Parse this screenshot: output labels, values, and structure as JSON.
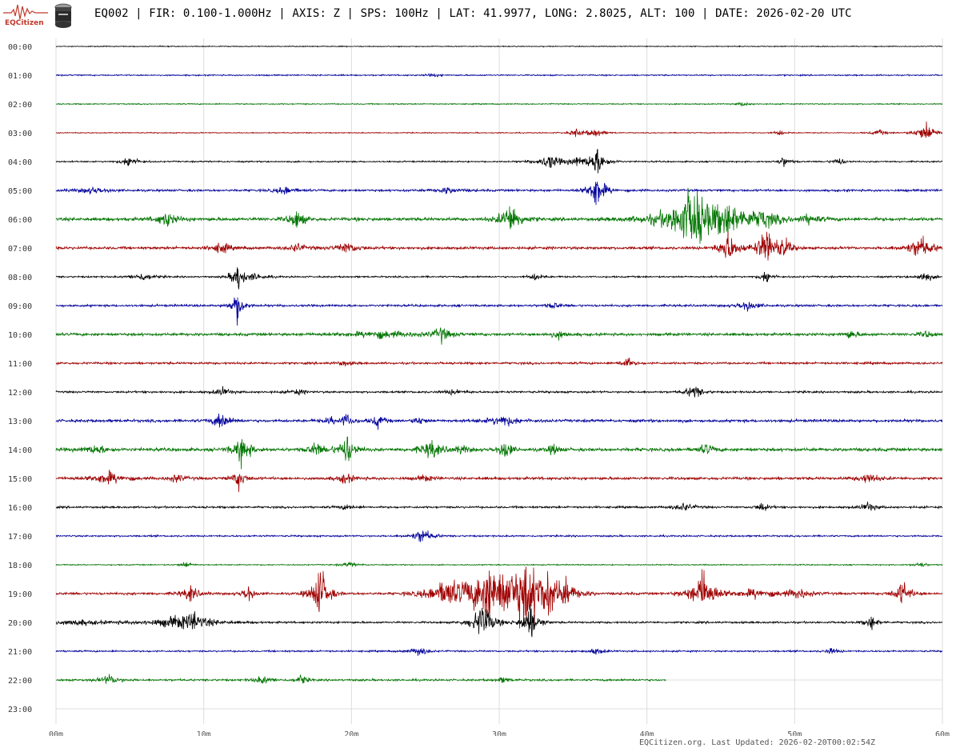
{
  "header": {
    "title": "EQ002 | FIR: 0.100-1.000Hz | AXIS: Z | SPS: 100Hz | LAT: 41.9977, LONG: 2.8025, ALT: 100 | DATE: 2026-02-20 UTC",
    "logo_text": "EQCitizen",
    "logo_icon": "seismograph-icon",
    "sensor_icon": "sensor-canister-icon"
  },
  "footer": {
    "text": "EQCitizen.org. Last Updated: 2026-02-20T00:02:54Z"
  },
  "colors": {
    "trace_cycle": [
      "#000000",
      "#00009c",
      "#007500",
      "#a00000"
    ],
    "grid": "#dcdcdc",
    "logo": "#c0392b"
  },
  "chart_data": {
    "type": "line",
    "title": "",
    "xlabel": "",
    "ylabel": "",
    "x_unit": "minutes",
    "xlim": [
      0,
      60
    ],
    "x_ticks": [
      "00m",
      "10m",
      "20m",
      "30m",
      "40m",
      "50m",
      "60m"
    ],
    "grid": true,
    "rows": [
      {
        "label": "00:00",
        "end_minute": 60,
        "noise": 0.8,
        "events": []
      },
      {
        "label": "01:00",
        "end_minute": 60,
        "noise": 1.2,
        "events": [
          [
            25.5,
            4,
            0.3
          ]
        ]
      },
      {
        "label": "02:00",
        "end_minute": 60,
        "noise": 1.0,
        "events": [
          [
            46.5,
            4,
            0.3
          ]
        ]
      },
      {
        "label": "03:00",
        "end_minute": 60,
        "noise": 0.9,
        "events": [
          [
            35.2,
            7,
            0.4
          ],
          [
            36.5,
            9,
            0.4
          ],
          [
            49,
            5,
            0.3
          ],
          [
            55.7,
            6,
            0.4
          ],
          [
            58.9,
            19,
            0.5
          ]
        ]
      },
      {
        "label": "04:00",
        "end_minute": 60,
        "noise": 1.3,
        "events": [
          [
            5,
            12,
            0.4
          ],
          [
            33.4,
            14,
            0.6
          ],
          [
            35.2,
            7,
            0.4
          ],
          [
            36.6,
            26,
            0.5
          ],
          [
            49.3,
            10,
            0.3
          ],
          [
            53,
            8,
            0.3
          ]
        ]
      },
      {
        "label": "05:00",
        "end_minute": 60,
        "noise": 2.0,
        "events": [
          [
            2.5,
            6,
            0.8
          ],
          [
            15.5,
            8,
            0.5
          ],
          [
            26.5,
            6,
            0.6
          ],
          [
            36.6,
            37,
            0.4
          ]
        ]
      },
      {
        "label": "06:00",
        "end_minute": 60,
        "noise": 3.0,
        "events": [
          [
            7.5,
            14,
            0.5
          ],
          [
            16.3,
            18,
            0.4
          ],
          [
            30.8,
            32,
            0.5
          ],
          [
            42.6,
            28,
            1.5
          ],
          [
            43.3,
            38,
            0.8
          ],
          [
            45.5,
            24,
            1.0
          ],
          [
            47.8,
            14,
            1.0
          ],
          [
            51,
            8,
            0.6
          ]
        ]
      },
      {
        "label": "07:00",
        "end_minute": 60,
        "noise": 2.5,
        "events": [
          [
            11.2,
            12,
            0.4
          ],
          [
            16.3,
            9,
            0.4
          ],
          [
            19.7,
            10,
            0.6
          ],
          [
            45.5,
            34,
            0.4
          ],
          [
            48.1,
            38,
            0.5
          ],
          [
            49.3,
            16,
            0.4
          ],
          [
            58.5,
            22,
            0.6
          ]
        ]
      },
      {
        "label": "08:00",
        "end_minute": 60,
        "noise": 1.5,
        "events": [
          [
            5.9,
            8,
            0.5
          ],
          [
            12.3,
            30,
            0.3
          ],
          [
            13.5,
            6,
            0.6
          ],
          [
            32.5,
            8,
            0.3
          ],
          [
            48.1,
            14,
            0.3
          ],
          [
            58.8,
            10,
            0.4
          ]
        ]
      },
      {
        "label": "09:00",
        "end_minute": 60,
        "noise": 2.0,
        "events": [
          [
            12.3,
            34,
            0.3
          ],
          [
            33.7,
            6,
            0.4
          ],
          [
            46.8,
            10,
            0.5
          ]
        ]
      },
      {
        "label": "10:00",
        "end_minute": 60,
        "noise": 2.5,
        "events": [
          [
            22,
            6,
            2.0
          ],
          [
            26.1,
            14,
            0.4
          ],
          [
            34,
            8,
            0.4
          ],
          [
            53.8,
            8,
            0.4
          ],
          [
            58.9,
            6,
            0.4
          ]
        ]
      },
      {
        "label": "11:00",
        "end_minute": 60,
        "noise": 2.0,
        "events": [
          [
            38.6,
            12,
            0.3
          ],
          [
            19.5,
            5,
            0.4
          ]
        ]
      },
      {
        "label": "12:00",
        "end_minute": 60,
        "noise": 1.8,
        "events": [
          [
            11.3,
            8,
            0.4
          ],
          [
            16.3,
            5,
            0.5
          ],
          [
            27,
            5,
            0.5
          ],
          [
            43.2,
            14,
            0.4
          ]
        ]
      },
      {
        "label": "13:00",
        "end_minute": 60,
        "noise": 2.5,
        "events": [
          [
            11.2,
            18,
            0.4
          ],
          [
            18.6,
            6,
            0.4
          ],
          [
            19.7,
            14,
            0.3
          ],
          [
            21.8,
            14,
            0.3
          ],
          [
            30.3,
            10,
            0.8
          ],
          [
            24.6,
            8,
            0.3
          ]
        ]
      },
      {
        "label": "14:00",
        "end_minute": 60,
        "noise": 3.0,
        "events": [
          [
            2.7,
            8,
            0.6
          ],
          [
            12.6,
            30,
            0.4
          ],
          [
            17.6,
            14,
            0.4
          ],
          [
            19.7,
            30,
            0.4
          ],
          [
            25.4,
            18,
            0.5
          ],
          [
            27.5,
            8,
            0.4
          ],
          [
            30.4,
            22,
            0.3
          ],
          [
            33.7,
            10,
            0.3
          ],
          [
            44,
            10,
            0.4
          ]
        ]
      },
      {
        "label": "15:00",
        "end_minute": 60,
        "noise": 2.5,
        "events": [
          [
            3.5,
            12,
            0.8
          ],
          [
            8.2,
            8,
            0.4
          ],
          [
            12.4,
            20,
            0.3
          ],
          [
            19.6,
            10,
            0.4
          ],
          [
            25,
            6,
            0.4
          ],
          [
            55,
            10,
            0.5
          ]
        ]
      },
      {
        "label": "16:00",
        "end_minute": 60,
        "noise": 1.8,
        "events": [
          [
            19.7,
            5,
            0.4
          ],
          [
            42.5,
            8,
            0.5
          ],
          [
            47.8,
            10,
            0.3
          ],
          [
            55,
            9,
            0.4
          ]
        ]
      },
      {
        "label": "17:00",
        "end_minute": 60,
        "noise": 1.5,
        "events": [
          [
            24.8,
            14,
            0.5
          ]
        ]
      },
      {
        "label": "18:00",
        "end_minute": 60,
        "noise": 1.0,
        "events": [
          [
            8.8,
            6,
            0.3
          ],
          [
            19.9,
            5,
            0.4
          ],
          [
            58.5,
            6,
            0.3
          ]
        ]
      },
      {
        "label": "19:00",
        "end_minute": 60,
        "noise": 2.2,
        "events": [
          [
            9.1,
            16,
            0.4
          ],
          [
            13,
            18,
            0.3
          ],
          [
            17.9,
            56,
            0.4
          ],
          [
            26.4,
            22,
            0.8
          ],
          [
            29.4,
            46,
            1.5
          ],
          [
            31.8,
            48,
            1.2
          ],
          [
            33.3,
            24,
            0.8
          ],
          [
            34.5,
            12,
            0.5
          ],
          [
            43.8,
            42,
            0.6
          ],
          [
            47.3,
            8,
            1.2
          ],
          [
            50.3,
            10,
            0.6
          ],
          [
            57.3,
            24,
            0.4
          ]
        ]
      },
      {
        "label": "20:00",
        "end_minute": 60,
        "noise": 1.8,
        "events": [
          [
            1.5,
            5,
            1.2
          ],
          [
            8.2,
            10,
            1.6
          ],
          [
            9.4,
            14,
            0.6
          ],
          [
            28.9,
            40,
            0.5
          ],
          [
            32.1,
            36,
            0.4
          ],
          [
            55.2,
            14,
            0.3
          ]
        ]
      },
      {
        "label": "21:00",
        "end_minute": 60,
        "noise": 1.5,
        "events": [
          [
            24.6,
            8,
            0.5
          ],
          [
            36.6,
            6,
            0.4
          ],
          [
            52.5,
            6,
            0.3
          ]
        ]
      },
      {
        "label": "22:00",
        "end_minute": 41.3,
        "noise": 1.8,
        "events": [
          [
            3.6,
            9,
            0.5
          ],
          [
            14,
            8,
            0.4
          ],
          [
            16.6,
            10,
            0.3
          ],
          [
            30.3,
            5,
            0.4
          ]
        ]
      },
      {
        "label": "23:00",
        "end_minute": 0,
        "noise": 0,
        "events": []
      }
    ]
  }
}
